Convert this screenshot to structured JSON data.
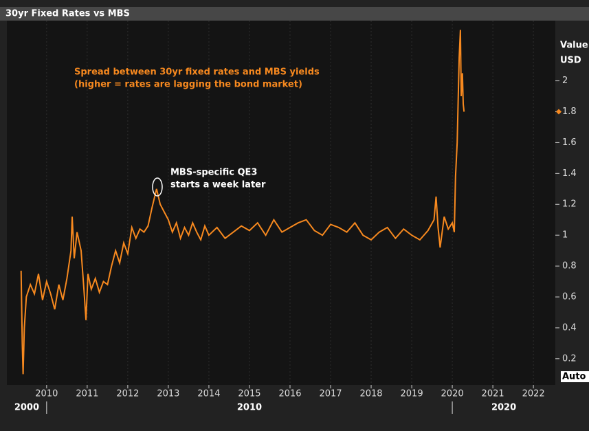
{
  "chart_data": {
    "type": "line",
    "title": "30yr Fixed Rates vs MBS",
    "ylabel": "Value",
    "yunit": "USD",
    "button": "Auto",
    "color": "#f7891f",
    "annotations": [
      {
        "lines": [
          "Spread between 30yr fixed rates and MBS yields",
          "(higher = rates are lagging the bond market)"
        ],
        "color": "#f7891f"
      },
      {
        "lines": [
          "MBS-specific QE3",
          "starts a week later"
        ],
        "color": "#ffffff"
      }
    ],
    "xlim": [
      2009.02,
      2022.54
    ],
    "xticks": [
      2010,
      2011,
      2012,
      2013,
      2014,
      2015,
      2016,
      2017,
      2018,
      2019,
      2020,
      2021,
      2022
    ],
    "decade_ticks": [
      2000,
      2010,
      2020
    ],
    "ylim": [
      0.03,
      2.39
    ],
    "yticks": [
      0.2,
      0.4,
      0.6,
      0.8,
      1,
      1.2,
      1.4,
      1.6,
      1.8,
      2
    ],
    "x": [
      2009.37,
      2009.4,
      2009.42,
      2009.45,
      2009.5,
      2009.6,
      2009.7,
      2009.8,
      2009.9,
      2010.0,
      2010.1,
      2010.2,
      2010.3,
      2010.4,
      2010.5,
      2010.6,
      2010.63,
      2010.68,
      2010.75,
      2010.85,
      2010.92,
      2010.97,
      2011.02,
      2011.1,
      2011.2,
      2011.3,
      2011.4,
      2011.5,
      2011.6,
      2011.7,
      2011.8,
      2011.9,
      2012.0,
      2012.1,
      2012.2,
      2012.3,
      2012.4,
      2012.5,
      2012.6,
      2012.71,
      2012.8,
      2012.9,
      2013.0,
      2013.1,
      2013.2,
      2013.3,
      2013.4,
      2013.5,
      2013.6,
      2013.7,
      2013.8,
      2013.9,
      2014.0,
      2014.2,
      2014.4,
      2014.6,
      2014.8,
      2015.0,
      2015.2,
      2015.4,
      2015.6,
      2015.8,
      2016.0,
      2016.2,
      2016.4,
      2016.6,
      2016.8,
      2017.0,
      2017.2,
      2017.4,
      2017.6,
      2017.8,
      2018.0,
      2018.2,
      2018.4,
      2018.6,
      2018.8,
      2019.0,
      2019.2,
      2019.4,
      2019.55,
      2019.6,
      2019.65,
      2019.7,
      2019.8,
      2019.9,
      2020.0,
      2020.05,
      2020.08,
      2020.12,
      2020.17,
      2020.2,
      2020.22,
      2020.25,
      2020.27,
      2020.29
    ],
    "values": [
      0.77,
      0.3,
      0.1,
      0.4,
      0.6,
      0.68,
      0.62,
      0.75,
      0.58,
      0.7,
      0.62,
      0.52,
      0.68,
      0.58,
      0.72,
      0.9,
      1.12,
      0.85,
      1.02,
      0.9,
      0.65,
      0.45,
      0.75,
      0.65,
      0.72,
      0.63,
      0.7,
      0.68,
      0.8,
      0.9,
      0.82,
      0.95,
      0.88,
      1.05,
      0.98,
      1.04,
      1.02,
      1.06,
      1.18,
      1.3,
      1.2,
      1.15,
      1.1,
      1.02,
      1.08,
      0.98,
      1.05,
      1.0,
      1.08,
      1.02,
      0.97,
      1.06,
      1.0,
      1.05,
      0.98,
      1.02,
      1.06,
      1.03,
      1.08,
      1.0,
      1.1,
      1.02,
      1.05,
      1.08,
      1.1,
      1.03,
      1.0,
      1.07,
      1.05,
      1.02,
      1.08,
      1.0,
      0.97,
      1.02,
      1.05,
      0.98,
      1.04,
      1.0,
      0.97,
      1.03,
      1.1,
      1.25,
      1.05,
      0.92,
      1.12,
      1.04,
      1.08,
      1.02,
      1.38,
      1.6,
      2.15,
      2.33,
      1.9,
      2.05,
      1.85,
      1.8
    ]
  }
}
